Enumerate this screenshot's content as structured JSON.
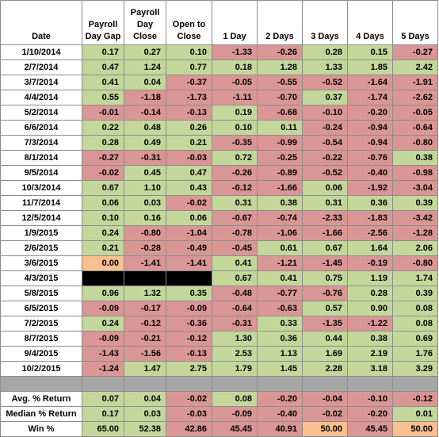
{
  "headers": [
    "Date",
    "Payroll Day Gap",
    "Payroll Day Close",
    "Open to Close",
    "1 Day",
    "2 Days",
    "3 Days",
    "4 Days",
    "5 Days"
  ],
  "rows": [
    {
      "date": "1/10/2014",
      "values": [
        "0.17",
        "0.27",
        "0.10",
        "-1.33",
        "-0.26",
        "0.28",
        "0.15",
        "-0.27"
      ]
    },
    {
      "date": "2/7/2014",
      "values": [
        "0.47",
        "1.24",
        "0.77",
        "0.18",
        "1.28",
        "1.33",
        "1.85",
        "2.42"
      ]
    },
    {
      "date": "3/7/2014",
      "values": [
        "0.41",
        "0.04",
        "-0.37",
        "-0.05",
        "-0.55",
        "-0.52",
        "-1.64",
        "-1.91"
      ]
    },
    {
      "date": "4/4/2014",
      "values": [
        "0.55",
        "-1.18",
        "-1.73",
        "-1.11",
        "-0.70",
        "0.37",
        "-1.74",
        "-2.62"
      ]
    },
    {
      "date": "5/2/2014",
      "values": [
        "-0.01",
        "-0.14",
        "-0.13",
        "0.19",
        "-0.68",
        "-0.10",
        "-0.20",
        "-0.05"
      ]
    },
    {
      "date": "6/6/2014",
      "values": [
        "0.22",
        "0.48",
        "0.26",
        "0.10",
        "0.11",
        "-0.24",
        "-0.94",
        "-0.64"
      ]
    },
    {
      "date": "7/3/2014",
      "values": [
        "0.28",
        "0.49",
        "0.21",
        "-0.35",
        "-0.99",
        "-0.54",
        "-0.94",
        "-0.80"
      ]
    },
    {
      "date": "8/1/2014",
      "values": [
        "-0.27",
        "-0.31",
        "-0.03",
        "0.72",
        "-0.25",
        "-0.22",
        "-0.76",
        "0.38"
      ]
    },
    {
      "date": "9/5/2014",
      "values": [
        "-0.02",
        "0.45",
        "0.47",
        "-0.26",
        "-0.89",
        "-0.52",
        "-0.40",
        "-0.98"
      ]
    },
    {
      "date": "10/3/2014",
      "values": [
        "0.67",
        "1.10",
        "0.43",
        "-0.12",
        "-1.66",
        "0.06",
        "-1.92",
        "-3.04"
      ]
    },
    {
      "date": "11/7/2014",
      "values": [
        "0.06",
        "0.03",
        "-0.02",
        "0.31",
        "0.38",
        "0.31",
        "0.36",
        "0.39"
      ]
    },
    {
      "date": "12/5/2014",
      "values": [
        "0.10",
        "0.16",
        "0.06",
        "-0.67",
        "-0.74",
        "-2.33",
        "-1.83",
        "-3.42"
      ]
    },
    {
      "date": "1/9/2015",
      "values": [
        "0.24",
        "-0.80",
        "-1.04",
        "-0.78",
        "-1.06",
        "-1.66",
        "-2.56",
        "-1.28"
      ]
    },
    {
      "date": "2/6/2015",
      "values": [
        "0.21",
        "-0.28",
        "-0.49",
        "-0.45",
        "0.61",
        "0.67",
        "1.64",
        "2.06"
      ]
    },
    {
      "date": "3/6/2015",
      "values": [
        "0.00",
        "-1.41",
        "-1.41",
        "0.41",
        "-1.21",
        "-1.45",
        "-0.19",
        "-0.80"
      ]
    },
    {
      "date": "4/3/2015",
      "values": [
        "",
        "",
        "",
        "0.67",
        "0.41",
        "0.75",
        "1.19",
        "1.74"
      ]
    },
    {
      "date": "5/8/2015",
      "values": [
        "0.96",
        "1.32",
        "0.35",
        "-0.48",
        "-0.77",
        "-0.76",
        "0.28",
        "0.39"
      ]
    },
    {
      "date": "6/5/2015",
      "values": [
        "-0.09",
        "-0.17",
        "-0.09",
        "-0.64",
        "-0.63",
        "0.57",
        "0.90",
        "0.08"
      ]
    },
    {
      "date": "7/2/2015",
      "values": [
        "0.24",
        "-0.12",
        "-0.36",
        "-0.31",
        "0.33",
        "-1.35",
        "-1.22",
        "0.08"
      ]
    },
    {
      "date": "8/7/2015",
      "values": [
        "-0.09",
        "-0.21",
        "-0.12",
        "1.30",
        "0.36",
        "0.44",
        "0.38",
        "0.69"
      ]
    },
    {
      "date": "9/4/2015",
      "values": [
        "-1.43",
        "-1.56",
        "-0.13",
        "2.53",
        "1.13",
        "1.69",
        "2.19",
        "1.76"
      ]
    },
    {
      "date": "10/2/2015",
      "values": [
        "-1.24",
        "1.47",
        "2.75",
        "1.79",
        "1.45",
        "2.28",
        "3.18",
        "3.29"
      ]
    }
  ],
  "summary": [
    {
      "label": "Avg. % Return",
      "values": [
        "0.07",
        "0.04",
        "-0.02",
        "0.08",
        "-0.20",
        "-0.04",
        "-0.10",
        "-0.12"
      ]
    },
    {
      "label": "Median % Return",
      "values": [
        "0.17",
        "0.03",
        "-0.03",
        "-0.09",
        "-0.40",
        "-0.02",
        "-0.20",
        "0.01"
      ]
    },
    {
      "label": "Win %",
      "values": [
        "65.00",
        "52.38",
        "42.86",
        "45.45",
        "40.91",
        "50.00",
        "45.45",
        "50.00"
      ]
    }
  ],
  "colors": {
    "positive": "#c4d79b",
    "negative": "#da9694",
    "neutral": "#fabf8f",
    "missing": "#000000",
    "separator": "#a6a6a6"
  }
}
